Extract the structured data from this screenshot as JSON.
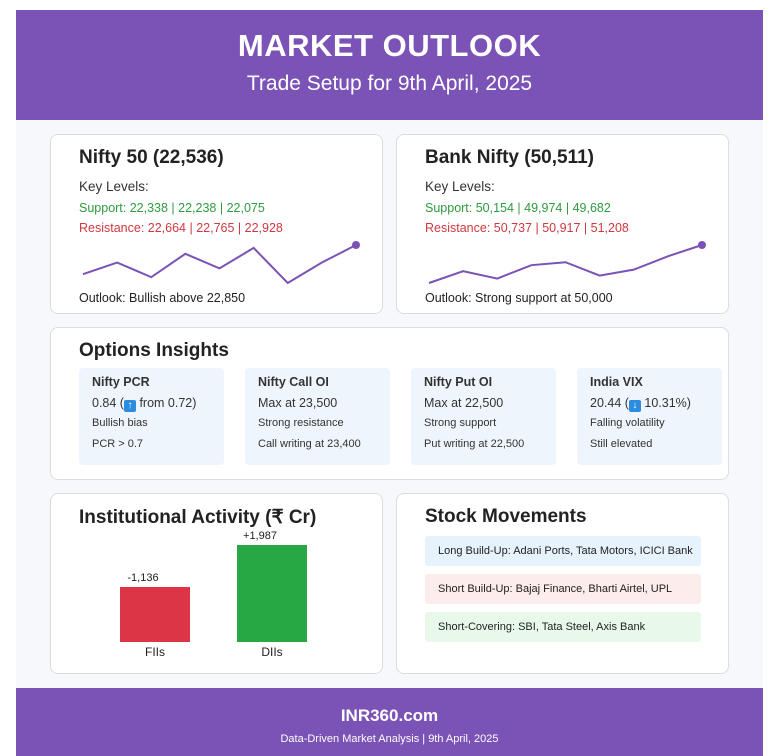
{
  "header": {
    "title": "MARKET OUTLOOK",
    "subtitle": "Trade Setup for 9th April, 2025"
  },
  "indices": [
    {
      "title": "Nifty 50 (22,536)",
      "key_levels_label": "Key Levels:",
      "support": "Support: 22,338 | 22,238 | 22,075",
      "resistance": "Resistance: 22,664 | 22,765 | 22,928",
      "outlook": "Outlook: Bullish above 22,850",
      "sparkline": [
        22100,
        22300,
        22050,
        22450,
        22200,
        22550,
        21950,
        22300,
        22600
      ]
    },
    {
      "title": "Bank Nifty (50,511)",
      "key_levels_label": "Key Levels:",
      "support": "Support: 50,154 | 49,974 | 49,682",
      "resistance": "Resistance: 50,737 | 50,917 | 51,208",
      "outlook": "Outlook: Strong support at 50,000",
      "sparkline": [
        49700,
        50100,
        49850,
        50300,
        50400,
        49950,
        50150,
        50600,
        50980
      ]
    }
  ],
  "options": {
    "title": "Options Insights",
    "items": [
      {
        "heading": "Nifty PCR",
        "value_pre": "0.84 (",
        "arrow": "↑",
        "arrow_icon": "up-arrow-icon",
        "value_post": " from 0.72)",
        "note1": "Bullish bias",
        "note2": "PCR > 0.7"
      },
      {
        "heading": "Nifty Call OI",
        "value_pre": "Max at 23,500",
        "arrow": "",
        "arrow_icon": "",
        "value_post": "",
        "note1": "Strong resistance",
        "note2": "Call writing at 23,400"
      },
      {
        "heading": "Nifty Put OI",
        "value_pre": "Max at 22,500",
        "arrow": "",
        "arrow_icon": "",
        "value_post": "",
        "note1": "Strong support",
        "note2": "Put writing at 22,500"
      },
      {
        "heading": "India VIX",
        "value_pre": "20.44 (",
        "arrow": "↓",
        "arrow_icon": "down-arrow-icon",
        "value_post": " 10.31%)",
        "note1": "Falling volatility",
        "note2": "Still elevated"
      }
    ]
  },
  "institutional": {
    "title": "Institutional Activity (₹ Cr)"
  },
  "chart_data": {
    "type": "bar",
    "title": "Institutional Activity (₹ Cr)",
    "categories": [
      "FIIs",
      "DIIs"
    ],
    "values": [
      -1136,
      1987
    ],
    "value_labels": [
      "-1,136",
      "+1,987"
    ],
    "colors": [
      "#dc3545",
      "#28a745"
    ]
  },
  "movements": {
    "title": "Stock Movements",
    "items": [
      {
        "text": "Long Build-Up: Adani Ports, Tata Motors, ICICI Bank",
        "bg": "#e6f3fc"
      },
      {
        "text": "Short Build-Up: Bajaj Finance, Bharti Airtel, UPL",
        "bg": "#fdecec"
      },
      {
        "text": "Short-Covering: SBI, Tata Steel, Axis Bank",
        "bg": "#e9f9e9"
      }
    ]
  },
  "footer": {
    "brand": "INR360.com",
    "tagline": "Data-Driven Market Analysis | 9th April, 2025"
  },
  "colors": {
    "accent": "#7b52b5",
    "support": "#2e9b3e",
    "resistance": "#d0383f",
    "sparkline": "#7b52b5"
  }
}
